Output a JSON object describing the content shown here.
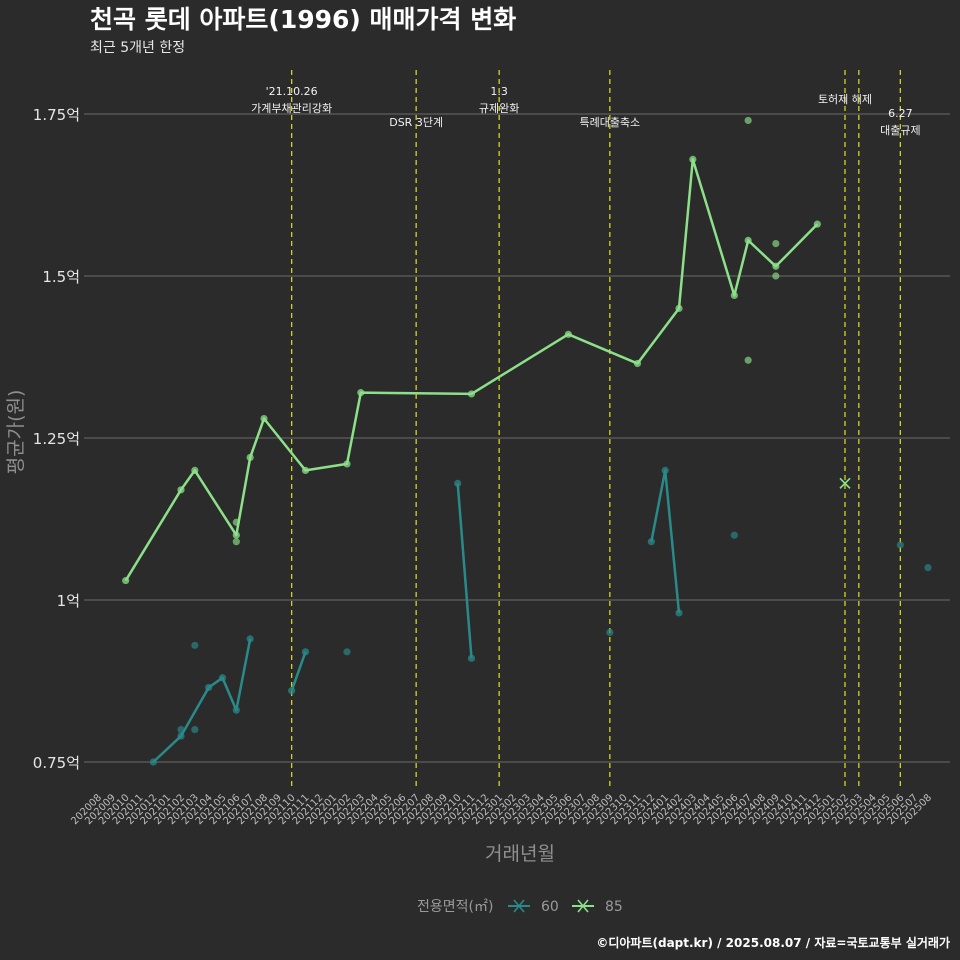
{
  "title": "천곡 롯데 아파트(1996) 매매가격 변화",
  "subtitle": "최근 5개년 한정",
  "caption": "©디아파트(dapt.kr) / 2025.08.07 / 자료=국토교통부 실거래가",
  "colors": {
    "background": "#2b2b2b",
    "grid": "#6b6b6b",
    "vline": "#d4d41e",
    "s60": "#2a8a8a",
    "s85": "#8ce08a"
  },
  "chart_data": {
    "type": "line",
    "xlabel": "거래년월",
    "ylabel": "평균가(원)",
    "ylim": [
      0.7,
      1.81
    ],
    "yunit_ticks": [
      0.75,
      1.0,
      1.25,
      1.5,
      1.75
    ],
    "ytick_labels": [
      "0.75억",
      "1억",
      "1.25억",
      "1.5억",
      "1.75억"
    ],
    "x_categories": [
      "202008",
      "202009",
      "202010",
      "202011",
      "202012",
      "202101",
      "202102",
      "202103",
      "202104",
      "202105",
      "202106",
      "202107",
      "202108",
      "202109",
      "202110",
      "202111",
      "202112",
      "202201",
      "202202",
      "202203",
      "202204",
      "202205",
      "202206",
      "202207",
      "202208",
      "202209",
      "202210",
      "202211",
      "202212",
      "202301",
      "202302",
      "202303",
      "202304",
      "202305",
      "202306",
      "202307",
      "202308",
      "202309",
      "202310",
      "202311",
      "202312",
      "202401",
      "202402",
      "202403",
      "202404",
      "202405",
      "202406",
      "202407",
      "202408",
      "202409",
      "202410",
      "202411",
      "202412",
      "202501",
      "202502",
      "202503",
      "202504",
      "202505",
      "202506",
      "202507",
      "202508"
    ],
    "legend_title": "전용면적(㎡)",
    "series": [
      {
        "name": "60",
        "color": "#2a8a8a",
        "segments": [
          [
            [
              "202012",
              0.75
            ],
            [
              "202102",
              0.79
            ],
            [
              "202104",
              0.865
            ],
            [
              "202105",
              0.88
            ],
            [
              "202106",
              0.83
            ],
            [
              "202107",
              0.94
            ]
          ],
          [
            [
              "202110",
              0.86
            ],
            [
              "202111",
              0.92
            ]
          ],
          [
            [
              "202210",
              1.18
            ],
            [
              "202211",
              0.91
            ]
          ],
          [
            [
              "202312",
              1.09
            ],
            [
              "202401",
              1.2
            ],
            [
              "202402",
              0.98
            ]
          ]
        ],
        "points": [
          [
            "202102",
            0.8
          ],
          [
            "202103",
            0.93
          ],
          [
            "202103",
            0.8
          ],
          [
            "202202",
            0.92
          ],
          [
            "202309",
            0.95
          ],
          [
            "202406",
            1.1
          ],
          [
            "202506",
            1.085
          ],
          [
            "202508",
            1.05
          ]
        ],
        "cross": [
          [
            "202502",
            1.18
          ]
        ]
      },
      {
        "name": "85",
        "color": "#8ce08a",
        "segments": [
          [
            [
              "202010",
              1.03
            ],
            [
              "202102",
              1.17
            ],
            [
              "202103",
              1.2
            ],
            [
              "202106",
              1.1
            ],
            [
              "202107",
              1.22
            ],
            [
              "202108",
              1.28
            ],
            [
              "202111",
              1.2
            ],
            [
              "202202",
              1.21
            ],
            [
              "202203",
              1.32
            ],
            [
              "202211",
              1.318
            ],
            [
              "202306",
              1.41
            ],
            [
              "202311",
              1.365
            ],
            [
              "202402",
              1.45
            ],
            [
              "202403",
              1.68
            ],
            [
              "202406",
              1.47
            ],
            [
              "202407",
              1.555
            ],
            [
              "202409",
              1.515
            ],
            [
              "202412",
              1.58
            ]
          ]
        ],
        "points": [
          [
            "202106",
            1.09
          ],
          [
            "202106",
            1.12
          ],
          [
            "202407",
            1.74
          ],
          [
            "202407",
            1.37
          ],
          [
            "202409",
            1.55
          ],
          [
            "202409",
            1.5
          ]
        ],
        "cross": [
          [
            "202502",
            1.18
          ]
        ]
      }
    ],
    "events": [
      {
        "x": "202110",
        "label_line1": "'21.10.26",
        "label_line2": "가계부채관리강화",
        "label_row": "top"
      },
      {
        "x": "202207",
        "label_line1": "DSR 3단계",
        "label_line2": "",
        "label_row": "bottom"
      },
      {
        "x": "202301",
        "label_line1": "1.3",
        "label_line2": "규제완화",
        "label_row": "top"
      },
      {
        "x": "202309",
        "label_line1": "특례대출축소",
        "label_line2": "",
        "label_row": "bottom"
      },
      {
        "x": "202502",
        "label_line1": "토허제 해제",
        "label_line2": "",
        "label_row": "mid"
      },
      {
        "x": "202503",
        "label_line1": "",
        "label_line2": "",
        "label_row": "none"
      },
      {
        "x": "202506",
        "label_line1": "6.27",
        "label_line2": "대출규제",
        "label_row": "lower"
      }
    ]
  }
}
